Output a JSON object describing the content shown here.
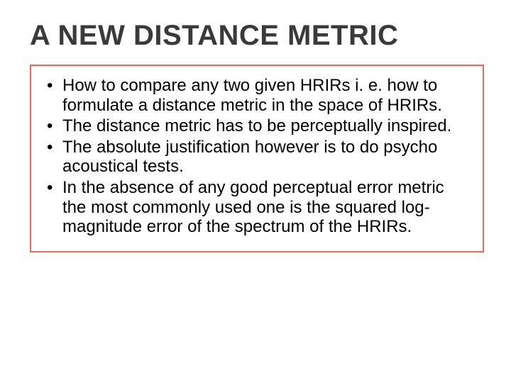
{
  "slide": {
    "title": "A NEW DISTANCE METRIC",
    "title_color": "#3a3a3a",
    "title_fontsize": 40,
    "title_fontweight": 700,
    "background_color": "#ffffff",
    "content_box": {
      "border_color": "#e86a5c",
      "border_width": 2,
      "bullet_color": "#000000",
      "text_color": "#000000",
      "text_fontsize": 24,
      "bullets": [
        "How to compare any two given HRIRs i. e. how to formulate a distance metric in the space of HRIRs.",
        "The distance metric has to be perceptually inspired.",
        "The absolute justification however is to do psycho acoustical tests.",
        "In the absence of any good perceptual error metric the most commonly used one is the squared log-magnitude error of the spectrum of the HRIRs."
      ]
    }
  }
}
